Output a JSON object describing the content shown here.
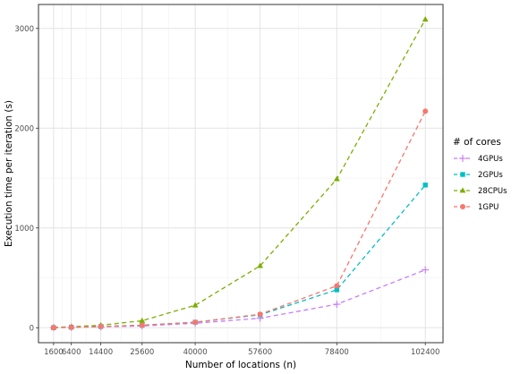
{
  "chart_data": {
    "type": "line",
    "xlabel": "Number of locations (n)",
    "ylabel": "Execution time per iteration (s)",
    "x": [
      1600,
      6400,
      14400,
      25600,
      40000,
      57600,
      78400,
      102400
    ],
    "x_tick_labels": [
      "1600",
      "6400",
      "14400",
      "25600",
      "40000",
      "57600",
      "78400",
      "102400"
    ],
    "y_ticks": [
      0,
      1000,
      2000,
      3000
    ],
    "y_tick_labels": [
      "0",
      "1000",
      "2000",
      "3000"
    ],
    "xlim": [
      -2500,
      107200
    ],
    "ylim": [
      -150,
      3240
    ],
    "grid": true,
    "legend": {
      "title": "# of cores",
      "placement": "right"
    },
    "series": [
      {
        "name": "4GPUs",
        "color": "#C77CFF",
        "marker": "plus",
        "values": [
          1,
          4,
          9,
          18,
          45,
          95,
          235,
          580
        ]
      },
      {
        "name": "2GPUs",
        "color": "#00BFC4",
        "marker": "square",
        "values": [
          1,
          5,
          12,
          25,
          55,
          130,
          380,
          1430
        ]
      },
      {
        "name": "28CPUs",
        "color": "#7CAE00",
        "marker": "triangle",
        "values": [
          2,
          10,
          25,
          70,
          225,
          620,
          1490,
          3090
        ]
      },
      {
        "name": "1GPU",
        "color": "#F8766D",
        "marker": "circle",
        "values": [
          1,
          5,
          12,
          25,
          55,
          135,
          420,
          2170
        ]
      }
    ]
  }
}
